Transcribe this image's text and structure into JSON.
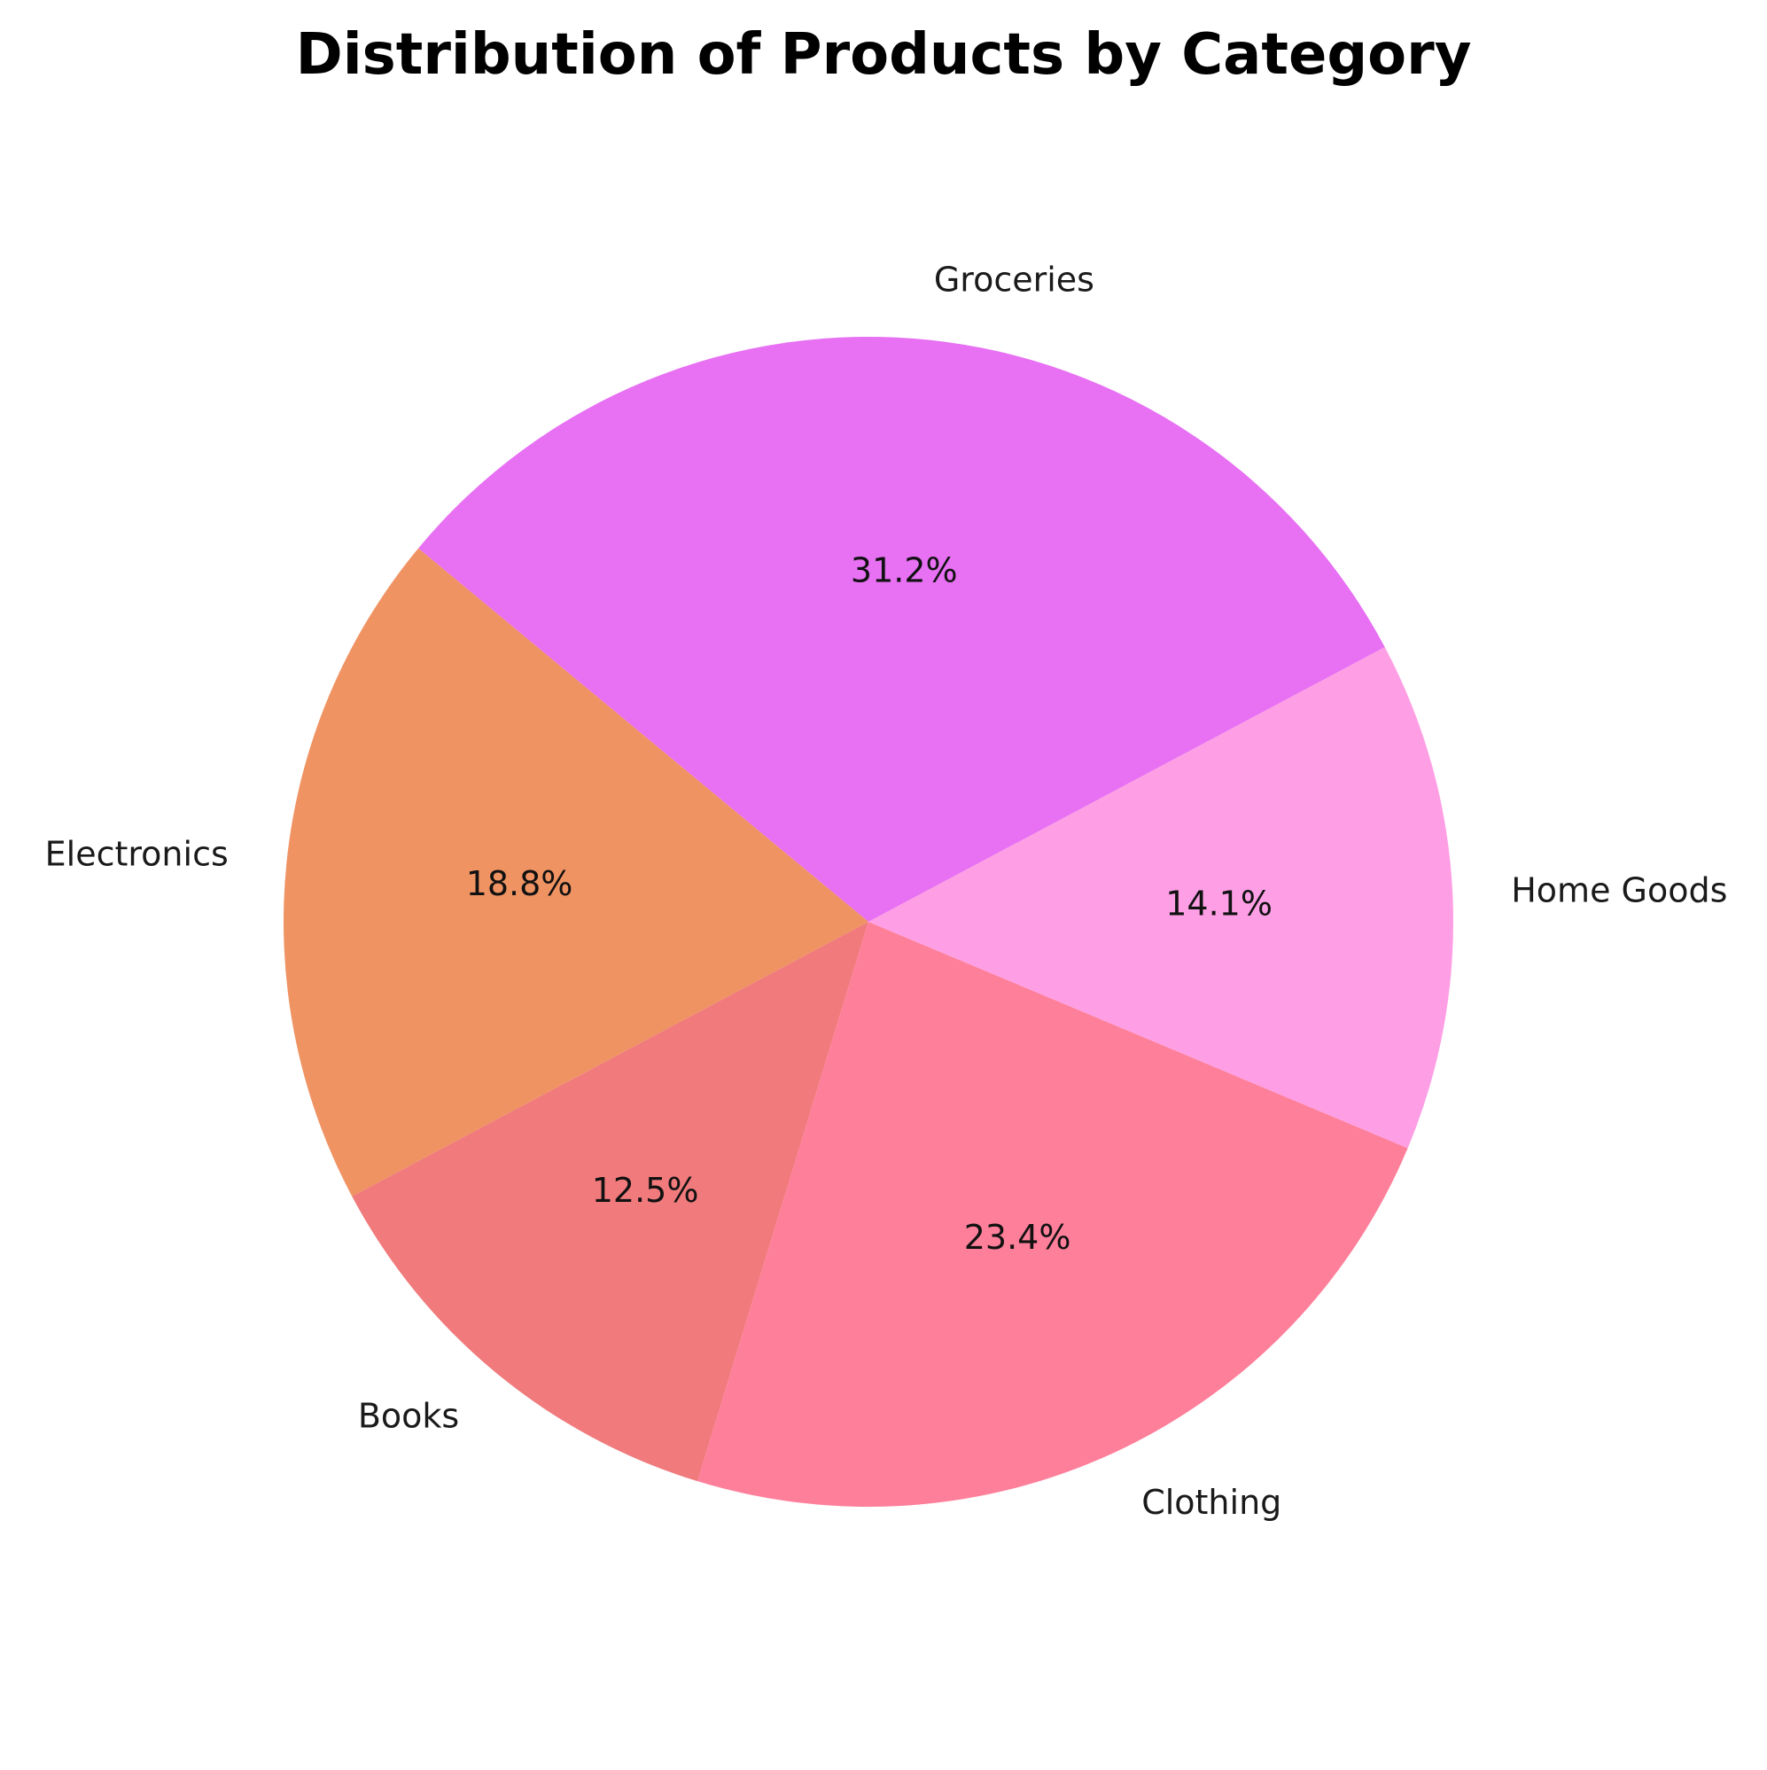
{
  "chart_data": {
    "type": "pie",
    "title": "Distribution of Products by Category",
    "categories": [
      "Groceries",
      "Electronics",
      "Books",
      "Clothing",
      "Home Goods"
    ],
    "values": [
      31.2,
      18.8,
      12.5,
      23.4,
      14.1
    ],
    "value_labels": [
      "31.2%",
      "18.8%",
      "12.5%",
      "23.4%",
      "14.1%"
    ],
    "colors": [
      "#e770f3",
      "#ef9363",
      "#f07a7c",
      "#fe7f9a",
      "#fe9fe5"
    ],
    "start_angle_deg": 28,
    "direction": "counterclockwise"
  }
}
